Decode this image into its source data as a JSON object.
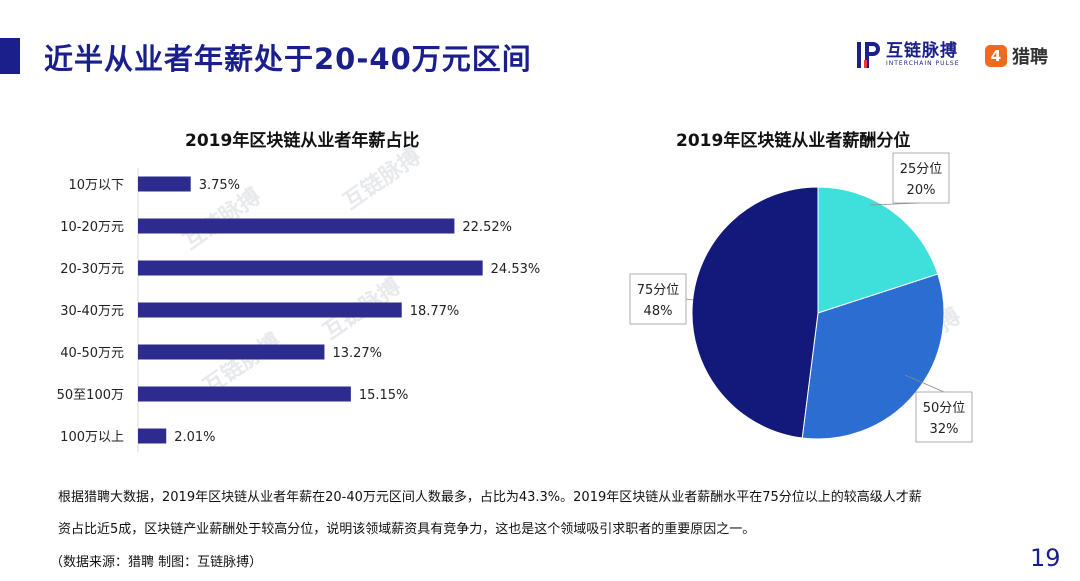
{
  "header": {
    "title": "近半从业者年薪处于20-40万元区间",
    "brand_interchain_name": "互链脉搏",
    "brand_interchain_sub": "INTERCHAIN PULSE",
    "brand_liepin_name": "猎聘"
  },
  "colors": {
    "accent": "#1a1f8c",
    "bar": "#2e2b8f",
    "pie_25": "#3fe0dc",
    "pie_50": "#2b6dd1",
    "pie_75": "#12197a",
    "liepin": "#f06a1d"
  },
  "chart_data": [
    {
      "type": "bar",
      "orientation": "horizontal",
      "title": "2019年区块链从业者年薪占比",
      "categories": [
        "10万以下",
        "10-20万元",
        "20-30万元",
        "30-40万元",
        "40-50万元",
        "50至100万",
        "100万以上"
      ],
      "values": [
        3.75,
        22.52,
        24.53,
        18.77,
        13.27,
        15.15,
        2.01
      ],
      "value_labels": [
        "3.75%",
        "22.52%",
        "24.53%",
        "18.77%",
        "13.27%",
        "15.15%",
        "2.01%"
      ],
      "unit": "%",
      "grid": false
    },
    {
      "type": "pie",
      "title": "2019年区块链从业者薪酬分位",
      "categories": [
        "25分位",
        "50分位",
        "75分位"
      ],
      "values": [
        20,
        32,
        48
      ],
      "value_labels": [
        "20%",
        "32%",
        "48%"
      ],
      "unit": "%"
    }
  ],
  "footer": {
    "note_line1": "根据猎聘大数据，2019年区块链从业者年薪在20-40万元区间人数最多，占比为43.3%。2019年区块链从业者薪酬水平在75分位以上的较高级人才薪",
    "note_line2": "资占比近5成，区块链产业薪酬处于较高分位，说明该领域薪资具有竞争力，这也是这个领域吸引求职者的重要原因之一。",
    "source": "（数据来源：猎聘   制图：互链脉搏）",
    "page_number": "19"
  },
  "watermark_text": "互链脉搏"
}
